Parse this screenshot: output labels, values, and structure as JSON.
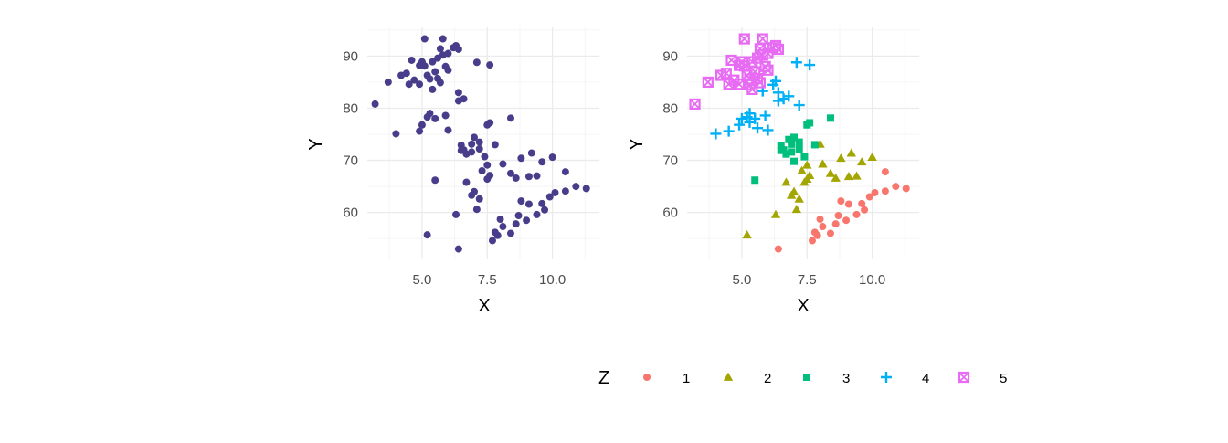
{
  "colors": {
    "single": "#483D8B",
    "grid_major": "#EBEBEB",
    "grid_minor": "#F5F5F5",
    "groups": {
      "1": "#F8766D",
      "2": "#A3A500",
      "3": "#00BF7D",
      "4": "#00B0F6",
      "5": "#E76BF3"
    }
  },
  "legend": {
    "title": "Z",
    "items": [
      {
        "label": "1",
        "shape": "circle"
      },
      {
        "label": "2",
        "shape": "triangle"
      },
      {
        "label": "3",
        "shape": "square"
      },
      {
        "label": "4",
        "shape": "plus"
      },
      {
        "label": "5",
        "shape": "square-cross"
      }
    ]
  },
  "chart_data": [
    {
      "type": "scatter",
      "xlabel": "X",
      "ylabel": "Y",
      "xlim": [
        2.9,
        11.8
      ],
      "ylim": [
        51.0,
        95.5
      ],
      "xticks": [
        "5.0",
        "7.5",
        "10.0"
      ],
      "xtick_values": [
        5.0,
        7.5,
        10.0
      ],
      "yticks": [
        "60",
        "70",
        "80",
        "90"
      ],
      "ytick_values": [
        60,
        70,
        80,
        90
      ],
      "grid": true,
      "color_mode": "single",
      "points": [
        [
          5.2,
          55.7
        ],
        [
          5.5,
          66.2
        ],
        [
          6.4,
          53.0
        ],
        [
          6.3,
          59.6
        ],
        [
          7.1,
          60.6
        ],
        [
          6.9,
          63.3
        ],
        [
          7.0,
          64.0
        ],
        [
          6.7,
          65.8
        ],
        [
          7.2,
          62.6
        ],
        [
          7.5,
          66.4
        ],
        [
          7.6,
          67.1
        ],
        [
          7.5,
          69.1
        ],
        [
          7.3,
          68.0
        ],
        [
          8.1,
          69.3
        ],
        [
          8.4,
          67.5
        ],
        [
          8.6,
          66.6
        ],
        [
          8.8,
          70.4
        ],
        [
          9.2,
          71.4
        ],
        [
          9.6,
          69.7
        ],
        [
          9.1,
          66.9
        ],
        [
          9.4,
          67.0
        ],
        [
          10.0,
          70.6
        ],
        [
          10.1,
          63.8
        ],
        [
          9.9,
          63.0
        ],
        [
          9.6,
          61.7
        ],
        [
          9.1,
          61.6
        ],
        [
          9.4,
          59.6
        ],
        [
          9.0,
          58.5
        ],
        [
          8.6,
          57.8
        ],
        [
          8.7,
          59.4
        ],
        [
          8.1,
          57.3
        ],
        [
          7.8,
          56.2
        ],
        [
          7.7,
          54.6
        ],
        [
          7.9,
          55.6
        ],
        [
          8.4,
          56.0
        ],
        [
          8.0,
          58.7
        ],
        [
          8.8,
          62.2
        ],
        [
          9.7,
          60.5
        ],
        [
          10.5,
          64.1
        ],
        [
          10.9,
          65.0
        ],
        [
          11.3,
          64.6
        ],
        [
          10.5,
          67.8
        ],
        [
          5.8,
          90.2
        ],
        [
          5.1,
          93.3
        ],
        [
          5.4,
          88.9
        ],
        [
          5.6,
          89.6
        ],
        [
          5.9,
          88.0
        ],
        [
          6.0,
          87.3
        ],
        [
          5.2,
          86.3
        ],
        [
          4.7,
          85.4
        ],
        [
          4.9,
          84.6
        ],
        [
          4.5,
          84.6
        ],
        [
          4.4,
          86.7
        ],
        [
          4.2,
          86.3
        ],
        [
          3.7,
          85.0
        ],
        [
          4.6,
          89.2
        ],
        [
          5.3,
          85.6
        ],
        [
          5.5,
          87.0
        ],
        [
          6.0,
          90.5
        ],
        [
          6.2,
          91.6
        ],
        [
          6.4,
          91.3
        ],
        [
          6.3,
          92.0
        ],
        [
          5.7,
          91.4
        ],
        [
          5.8,
          93.3
        ],
        [
          5.0,
          88.9
        ],
        [
          4.9,
          88.2
        ],
        [
          5.1,
          88.1
        ],
        [
          5.6,
          85.7
        ],
        [
          5.4,
          83.6
        ],
        [
          5.7,
          84.9
        ],
        [
          3.2,
          80.8
        ],
        [
          4.0,
          75.1
        ],
        [
          4.9,
          75.6
        ],
        [
          5.3,
          79.0
        ],
        [
          5.5,
          78.0
        ],
        [
          5.2,
          78.3
        ],
        [
          5.0,
          76.8
        ],
        [
          5.9,
          78.6
        ],
        [
          6.0,
          75.8
        ],
        [
          6.4,
          83.0
        ],
        [
          6.6,
          81.8
        ],
        [
          6.4,
          81.4
        ],
        [
          7.1,
          88.8
        ],
        [
          7.6,
          88.3
        ],
        [
          6.5,
          72.9
        ],
        [
          6.6,
          72.0
        ],
        [
          6.7,
          71.2
        ],
        [
          6.9,
          73.1
        ],
        [
          7.0,
          74.4
        ],
        [
          7.2,
          72.2
        ],
        [
          7.4,
          70.7
        ],
        [
          7.5,
          76.8
        ],
        [
          7.6,
          77.2
        ],
        [
          8.4,
          78.1
        ],
        [
          6.5,
          71.9
        ],
        [
          6.9,
          71.6
        ],
        [
          7.2,
          73.5
        ],
        [
          7.8,
          73.0
        ]
      ]
    },
    {
      "type": "scatter",
      "xlabel": "X",
      "ylabel": "Y",
      "xlim": [
        2.9,
        11.8
      ],
      "ylim": [
        51.0,
        95.5
      ],
      "xticks": [
        "5.0",
        "7.5",
        "10.0"
      ],
      "xtick_values": [
        5.0,
        7.5,
        10.0
      ],
      "yticks": [
        "60",
        "70",
        "80",
        "90"
      ],
      "ytick_values": [
        60,
        70,
        80,
        90
      ],
      "grid": true,
      "color_mode": "group",
      "groups": [
        {
          "name": "1",
          "shape": "circle",
          "points": [
            [
              6.4,
              53.0
            ],
            [
              7.7,
              54.6
            ],
            [
              7.9,
              55.6
            ],
            [
              8.4,
              56.0
            ],
            [
              7.8,
              56.2
            ],
            [
              8.1,
              57.3
            ],
            [
              8.6,
              57.8
            ],
            [
              8.0,
              58.7
            ],
            [
              8.7,
              59.4
            ],
            [
              9.0,
              58.5
            ],
            [
              9.4,
              59.6
            ],
            [
              9.1,
              61.6
            ],
            [
              9.6,
              61.7
            ],
            [
              9.9,
              63.0
            ],
            [
              10.1,
              63.8
            ],
            [
              9.7,
              60.5
            ],
            [
              8.8,
              62.2
            ],
            [
              10.5,
              64.1
            ],
            [
              10.9,
              65.0
            ],
            [
              11.3,
              64.6
            ],
            [
              10.5,
              67.8
            ]
          ]
        },
        {
          "name": "2",
          "shape": "triangle",
          "points": [
            [
              5.2,
              55.7
            ],
            [
              6.3,
              59.6
            ],
            [
              7.1,
              60.6
            ],
            [
              6.9,
              63.3
            ],
            [
              7.0,
              64.0
            ],
            [
              7.2,
              62.6
            ],
            [
              6.7,
              65.8
            ],
            [
              7.5,
              66.4
            ],
            [
              7.6,
              67.1
            ],
            [
              7.3,
              68.0
            ],
            [
              7.5,
              69.1
            ],
            [
              8.1,
              69.3
            ],
            [
              8.4,
              67.5
            ],
            [
              8.6,
              66.6
            ],
            [
              8.8,
              70.4
            ],
            [
              9.2,
              71.4
            ],
            [
              9.6,
              69.7
            ],
            [
              9.1,
              66.9
            ],
            [
              9.4,
              67.0
            ],
            [
              10.0,
              70.6
            ],
            [
              7.4,
              65.8
            ],
            [
              8.0,
              73.1
            ]
          ]
        },
        {
          "name": "3",
          "shape": "square",
          "points": [
            [
              5.5,
              66.2
            ],
            [
              6.5,
              72.9
            ],
            [
              6.6,
              72.0
            ],
            [
              6.7,
              71.2
            ],
            [
              6.9,
              73.1
            ],
            [
              7.0,
              74.4
            ],
            [
              7.2,
              72.2
            ],
            [
              7.4,
              70.7
            ],
            [
              7.5,
              76.8
            ],
            [
              7.6,
              77.2
            ],
            [
              8.4,
              78.1
            ],
            [
              6.5,
              71.9
            ],
            [
              6.9,
              71.6
            ],
            [
              7.2,
              73.5
            ],
            [
              7.8,
              73.0
            ],
            [
              6.8,
              74.0
            ],
            [
              7.0,
              69.8
            ]
          ]
        },
        {
          "name": "4",
          "shape": "plus",
          "points": [
            [
              4.0,
              75.1
            ],
            [
              4.5,
              75.6
            ],
            [
              4.9,
              76.8
            ],
            [
              5.2,
              78.3
            ],
            [
              5.3,
              79.0
            ],
            [
              5.5,
              78.0
            ],
            [
              5.9,
              78.6
            ],
            [
              6.0,
              75.8
            ],
            [
              5.6,
              76.2
            ],
            [
              5.0,
              78.0
            ],
            [
              6.4,
              83.0
            ],
            [
              6.6,
              81.8
            ],
            [
              6.4,
              81.4
            ],
            [
              6.2,
              84.5
            ],
            [
              6.3,
              85.2
            ],
            [
              5.8,
              83.3
            ],
            [
              7.1,
              88.8
            ],
            [
              7.6,
              88.3
            ],
            [
              7.2,
              80.6
            ],
            [
              6.8,
              82.3
            ],
            [
              5.3,
              77.3
            ]
          ]
        },
        {
          "name": "5",
          "shape": "square-cross",
          "points": [
            [
              3.2,
              80.8
            ],
            [
              3.7,
              85.0
            ],
            [
              4.2,
              86.3
            ],
            [
              4.4,
              86.7
            ],
            [
              4.5,
              84.6
            ],
            [
              4.9,
              84.6
            ],
            [
              4.7,
              85.4
            ],
            [
              5.2,
              86.3
            ],
            [
              5.3,
              85.6
            ],
            [
              5.5,
              87.0
            ],
            [
              5.4,
              88.9
            ],
            [
              5.6,
              89.6
            ],
            [
              5.9,
              88.0
            ],
            [
              6.0,
              87.3
            ],
            [
              5.8,
              90.2
            ],
            [
              5.1,
              93.3
            ],
            [
              6.0,
              90.5
            ],
            [
              6.2,
              91.6
            ],
            [
              6.4,
              91.3
            ],
            [
              6.3,
              92.0
            ],
            [
              5.7,
              91.4
            ],
            [
              5.8,
              93.3
            ],
            [
              5.0,
              88.9
            ],
            [
              4.9,
              88.2
            ],
            [
              5.1,
              88.1
            ],
            [
              5.6,
              85.7
            ],
            [
              5.4,
              83.6
            ],
            [
              5.7,
              84.9
            ],
            [
              4.6,
              89.2
            ],
            [
              5.3,
              84.5
            ]
          ]
        }
      ]
    }
  ]
}
